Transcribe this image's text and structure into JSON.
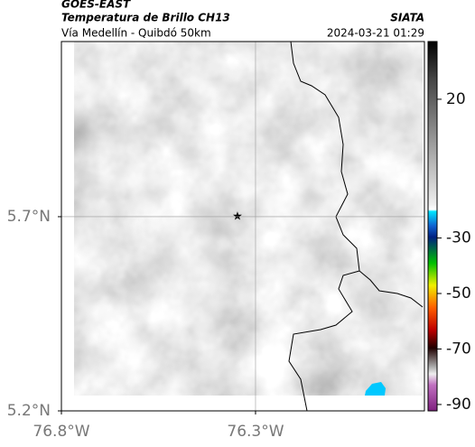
{
  "header": {
    "satellite": "GOES-EAST",
    "title": "Temperatura de Brillo CH13",
    "subtitle": "Vía Medellín - Quibdó 50km",
    "source": "SIATA",
    "timestamp": "2024-03-21 01:29"
  },
  "map": {
    "latlim": [
      5.2,
      6.151
    ],
    "lonlim": [
      -76.8,
      -75.865
    ],
    "latticks": [
      {
        "value": 5.7,
        "label": "5.7°N"
      },
      {
        "value": 5.2,
        "label": "5.2°N"
      }
    ],
    "lonticks": [
      {
        "value": -76.8,
        "label": "76.8°W"
      },
      {
        "value": -76.3,
        "label": "76.3°W"
      }
    ],
    "grid": true
  },
  "colorbar": {
    "lim": [
      40.8,
      -92.3
    ],
    "ticks": [
      20,
      -30,
      -50,
      -70,
      -90
    ]
  }
}
